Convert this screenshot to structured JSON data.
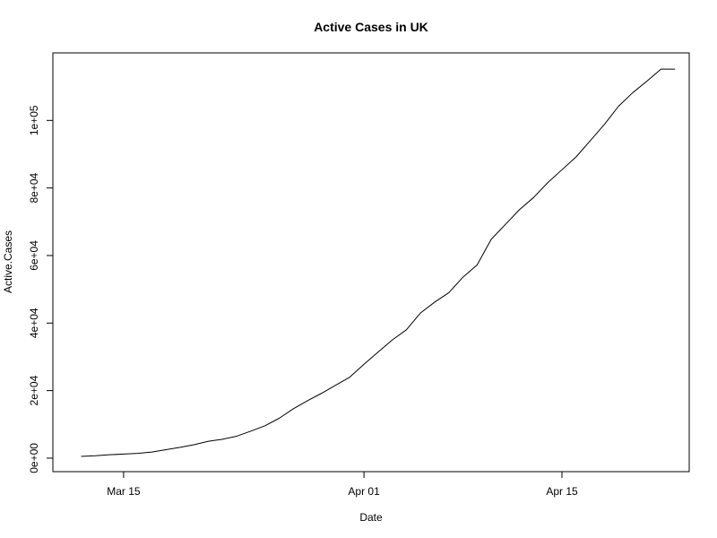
{
  "chart_data": {
    "type": "line",
    "title": "Active Cases in UK",
    "xlabel": "Date",
    "ylabel": "Active.Cases",
    "x_ticks": [
      {
        "date": "2020-03-15",
        "label": "Mar 15"
      },
      {
        "date": "2020-04-01",
        "label": "Apr 01"
      },
      {
        "date": "2020-04-15",
        "label": "Apr 15"
      }
    ],
    "y_ticks": [
      {
        "value": 0,
        "label": "0e+00"
      },
      {
        "value": 20000,
        "label": "2e+04"
      },
      {
        "value": 40000,
        "label": "4e+04"
      },
      {
        "value": 60000,
        "label": "6e+04"
      },
      {
        "value": 80000,
        "label": "8e+04"
      },
      {
        "value": 100000,
        "label": "1e+05"
      }
    ],
    "xlim": [
      "2020-03-10",
      "2020-04-24"
    ],
    "ylim": [
      -4000,
      120000
    ],
    "grid": false,
    "line_color": "#000000",
    "series": [
      {
        "x": [
          "2020-03-12",
          "2020-03-13",
          "2020-03-14",
          "2020-03-15",
          "2020-03-16",
          "2020-03-17",
          "2020-03-18",
          "2020-03-19",
          "2020-03-20",
          "2020-03-21",
          "2020-03-22",
          "2020-03-23",
          "2020-03-24",
          "2020-03-25",
          "2020-03-26",
          "2020-03-27",
          "2020-03-28",
          "2020-03-29",
          "2020-03-30",
          "2020-03-31",
          "2020-04-01",
          "2020-04-02",
          "2020-04-03",
          "2020-04-04",
          "2020-04-05",
          "2020-04-06",
          "2020-04-07",
          "2020-04-08",
          "2020-04-09",
          "2020-04-10",
          "2020-04-11",
          "2020-04-12",
          "2020-04-13",
          "2020-04-14",
          "2020-04-15",
          "2020-04-16",
          "2020-04-17",
          "2020-04-18",
          "2020-04-19",
          "2020-04-20",
          "2020-04-21",
          "2020-04-22",
          "2020-04-23"
        ],
        "values": [
          500,
          700,
          1000,
          1200,
          1400,
          1800,
          2500,
          3200,
          4000,
          5000,
          5600,
          6500,
          8000,
          9600,
          11800,
          14600,
          17000,
          19200,
          21600,
          24000,
          27800,
          31400,
          35000,
          38000,
          43000,
          46200,
          49000,
          53600,
          57200,
          64800,
          69200,
          73600,
          77200,
          81600,
          85400,
          89200,
          94000,
          98800,
          104200,
          108200,
          111600,
          115200,
          115200
        ]
      }
    ]
  }
}
